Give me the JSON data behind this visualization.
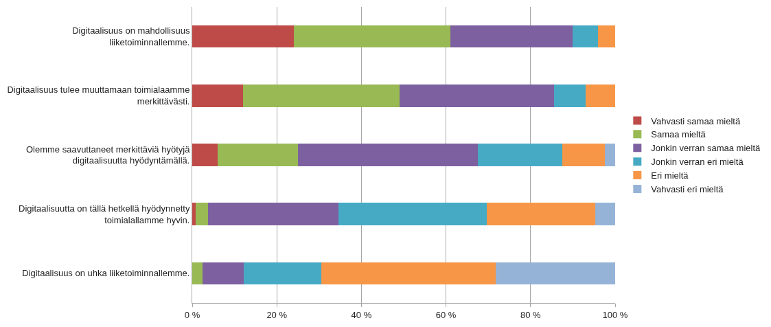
{
  "chart_data": {
    "type": "bar",
    "orientation": "horizontal",
    "stacked": true,
    "categories": [
      "Digitaalisuus on mahdollisuus liiketoiminnallemme.",
      "Digitaalisuus tulee muuttamaan toimialaamme merkittävästi.",
      "Olemme saavuttaneet merkittäviä hyötyjä digitaalisuutta hyödyntämällä.",
      "Digitaalisuutta on tällä hetkellä hyödynnetty toimialallamme hyvin.",
      "Digitaalisuus on uhka liiketoiminnallemme."
    ],
    "series": [
      {
        "name": "Vahvasti samaa mieltä",
        "color": "#be4b48",
        "values": [
          24,
          12,
          6,
          0.8,
          0
        ]
      },
      {
        "name": "Samaa mieltä",
        "color": "#98b954",
        "values": [
          37,
          37,
          19,
          3,
          2.4
        ]
      },
      {
        "name": "Jonkin verran samaa mieltä",
        "color": "#7d60a0",
        "values": [
          29,
          36.5,
          42.5,
          30.8,
          9.8
        ]
      },
      {
        "name": "Jonkin verran eri mieltä",
        "color": "#46aac5",
        "values": [
          6,
          7.5,
          20,
          35,
          18.3
        ]
      },
      {
        "name": "Eri mieltä",
        "color": "#f79646",
        "values": [
          4,
          7,
          10,
          25.7,
          41.2
        ]
      },
      {
        "name": "Vahvasti eri mieltä",
        "color": "#95b3d7",
        "values": [
          0,
          0,
          2.5,
          4.7,
          28.3
        ]
      }
    ],
    "xlim": [
      0,
      100
    ],
    "xticks": [
      {
        "value": 0,
        "label": "0 %"
      },
      {
        "value": 20,
        "label": "20 %"
      },
      {
        "value": 40,
        "label": "40 %"
      },
      {
        "value": 60,
        "label": "60 %"
      },
      {
        "value": 80,
        "label": "80 %"
      },
      {
        "value": 100,
        "label": "100 %"
      }
    ],
    "grid": "x",
    "legend": "right"
  }
}
